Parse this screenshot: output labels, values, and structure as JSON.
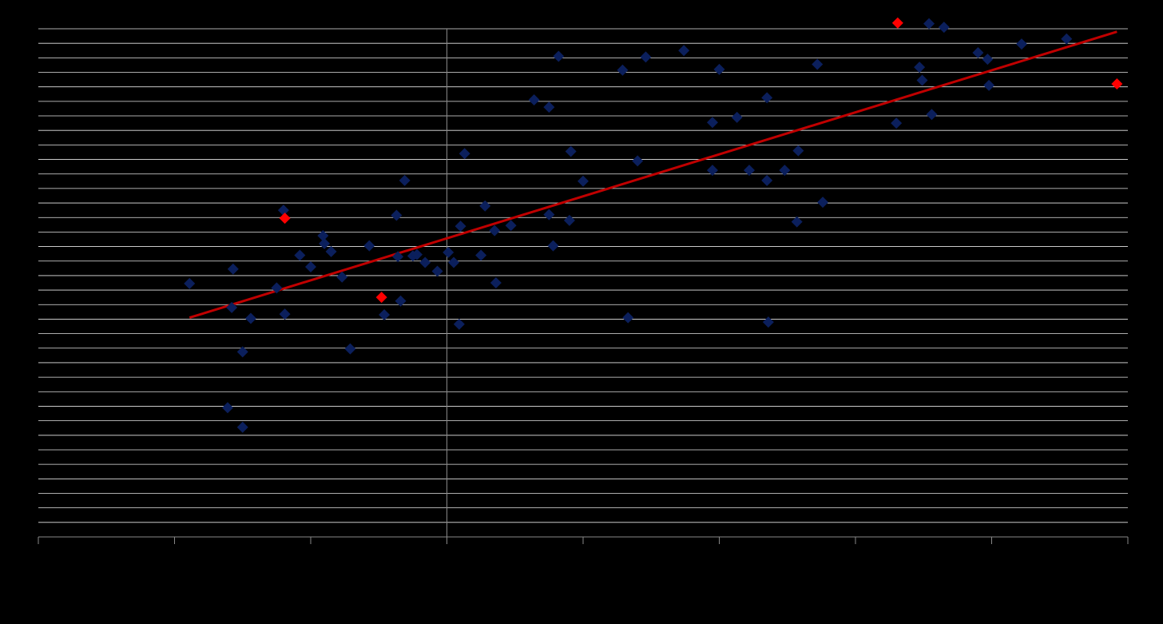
{
  "chart_data": {
    "type": "scatter",
    "title": "",
    "xlabel": "",
    "ylabel": "",
    "xlim": [
      -3,
      5
    ],
    "ylim": [
      -3.5,
      3.5
    ],
    "grid": true,
    "legend": "none",
    "colors": {
      "background": "#000000",
      "gridline": "#ffffff",
      "axis": "#888888",
      "points": "#0b1f5c",
      "highlight": "#ff0000",
      "trendline": "#c00000"
    },
    "series": [
      {
        "values": [
          [
            -1.89,
            -0.01
          ],
          [
            -1.57,
            0.19
          ],
          [
            -1.58,
            -0.34
          ],
          [
            -1.44,
            -0.49
          ],
          [
            -1.5,
            -0.95
          ],
          [
            -1.61,
            -1.72
          ],
          [
            -1.5,
            -1.99
          ],
          [
            -1.25,
            -0.07
          ],
          [
            -1.2,
            1.0
          ],
          [
            -1.19,
            -0.43
          ],
          [
            -1.08,
            0.38
          ],
          [
            -1.0,
            0.22
          ],
          [
            -0.91,
            0.65
          ],
          [
            -0.9,
            0.54
          ],
          [
            -0.85,
            0.43
          ],
          [
            -0.77,
            0.08
          ],
          [
            -0.71,
            -0.91
          ],
          [
            -0.57,
            0.51
          ],
          [
            -0.46,
            -0.44
          ],
          [
            -0.37,
            0.93
          ],
          [
            -0.36,
            0.36
          ],
          [
            -0.34,
            -0.25
          ],
          [
            -0.31,
            1.41
          ],
          [
            -0.25,
            0.37
          ],
          [
            -0.22,
            0.39
          ],
          [
            -0.16,
            0.28
          ],
          [
            -0.07,
            0.16
          ],
          [
            0.01,
            0.42
          ],
          [
            0.05,
            0.28
          ],
          [
            0.09,
            -0.57
          ],
          [
            0.1,
            0.78
          ],
          [
            0.13,
            1.78
          ],
          [
            0.25,
            0.38
          ],
          [
            0.28,
            1.06
          ],
          [
            0.35,
            0.72
          ],
          [
            0.36,
            0.0
          ],
          [
            0.47,
            0.79
          ],
          [
            0.64,
            2.52
          ],
          [
            0.75,
            2.42
          ],
          [
            0.75,
            0.94
          ],
          [
            0.78,
            0.51
          ],
          [
            0.82,
            3.12
          ],
          [
            0.9,
            0.86
          ],
          [
            0.91,
            1.81
          ],
          [
            1.0,
            1.4
          ],
          [
            1.29,
            2.93
          ],
          [
            1.33,
            -0.48
          ],
          [
            1.4,
            1.68
          ],
          [
            1.46,
            3.11
          ],
          [
            1.74,
            3.2
          ],
          [
            1.95,
            2.21
          ],
          [
            1.95,
            1.55
          ],
          [
            2.0,
            2.94
          ],
          [
            2.13,
            2.28
          ],
          [
            2.22,
            1.55
          ],
          [
            2.35,
            2.55
          ],
          [
            2.35,
            1.41
          ],
          [
            2.36,
            -0.54
          ],
          [
            2.48,
            1.55
          ],
          [
            2.57,
            0.84
          ],
          [
            2.58,
            1.82
          ],
          [
            2.72,
            3.01
          ],
          [
            2.76,
            1.11
          ],
          [
            3.3,
            2.2
          ],
          [
            3.47,
            2.97
          ],
          [
            3.49,
            2.79
          ],
          [
            3.54,
            3.57
          ],
          [
            3.56,
            2.32
          ],
          [
            3.65,
            3.52
          ],
          [
            3.9,
            3.17
          ],
          [
            3.97,
            3.08
          ],
          [
            3.98,
            2.72
          ],
          [
            4.22,
            3.29
          ],
          [
            4.55,
            3.36
          ]
        ]
      },
      {
        "values": [
          [
            -1.19,
            0.89
          ],
          [
            -0.48,
            -0.2
          ],
          [
            3.31,
            3.58
          ],
          [
            4.92,
            2.74
          ]
        ]
      }
    ],
    "trendline": {
      "type": "linear",
      "x_range": [
        -1.89,
        4.92
      ],
      "values": [
        [
          -1.89,
          -0.48
        ],
        [
          4.92,
          3.46
        ]
      ]
    }
  }
}
